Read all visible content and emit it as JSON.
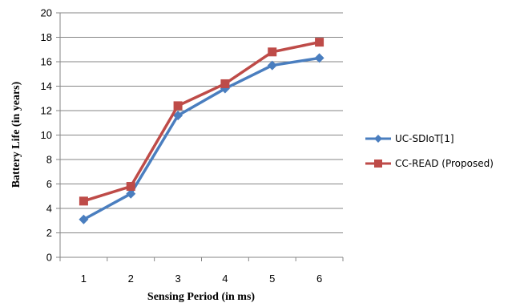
{
  "chart_data": {
    "type": "line",
    "xlabel": "Sensing Period (in ms)",
    "ylabel": "Battery Life (in years)",
    "categories": [
      "1",
      "2",
      "3",
      "4",
      "5",
      "6"
    ],
    "ylim": [
      0,
      20
    ],
    "yticks": [
      "0",
      "2",
      "4",
      "6",
      "8",
      "10",
      "12",
      "14",
      "16",
      "18",
      "20"
    ],
    "grid": true,
    "legend_position": "right",
    "series": [
      {
        "name": "UC-SDIoT[1]",
        "color": "#4a7ebf",
        "marker": "diamond",
        "values": [
          3.1,
          5.2,
          11.6,
          13.8,
          15.7,
          16.3
        ]
      },
      {
        "name": "CC-READ (Proposed)",
        "color": "#be4b48",
        "marker": "square",
        "values": [
          4.6,
          5.8,
          12.4,
          14.2,
          16.8,
          17.6
        ]
      }
    ]
  }
}
